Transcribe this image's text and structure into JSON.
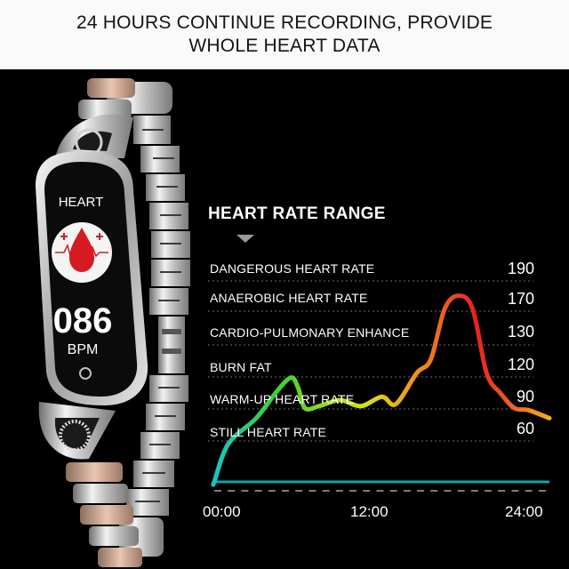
{
  "banner": {
    "line1": "24 HOURS CONTINUE RECORDING, PROVIDE",
    "line2": "WHOLE HEART DATA"
  },
  "watch": {
    "screen_title": "HEART",
    "reading": "086",
    "unit": "BPM",
    "icon": "heart-rate-drop-icon"
  },
  "chart": {
    "title": "HEART RATE RANGE",
    "zones": [
      {
        "label": "DANGEROUS HEART RATE",
        "value": "190"
      },
      {
        "label": "ANAEROBIC HEART RATE",
        "value": "170"
      },
      {
        "label": "CARDIO-PULMONARY ENHANCE",
        "value": "130"
      },
      {
        "label": "BURN FAT",
        "value": "120"
      },
      {
        "label": "WARM-UP HEART RATE",
        "value": "90"
      },
      {
        "label": "STILL HEART RATE",
        "value": "60"
      }
    ],
    "x_labels": [
      "00:00",
      "12:00",
      "24:00"
    ],
    "colors": {
      "start": "#19c3c3",
      "green": "#3fd12d",
      "yellow": "#d9e21c",
      "orange": "#f28a1e",
      "red": "#e4201e",
      "end": "#f5b01c",
      "baseline": "#12a4a8"
    }
  },
  "chart_data": {
    "type": "line",
    "title": "HEART RATE RANGE",
    "xlabel": "",
    "ylabel": "",
    "x_ticks": [
      "00:00",
      "12:00",
      "24:00"
    ],
    "y_ticks": [
      60,
      90,
      120,
      130,
      170,
      190
    ],
    "grid": true,
    "series": [
      {
        "x": [
          0,
          1,
          3,
          4.5,
          5.5,
          6,
          6.5,
          7.5,
          9,
          10.5,
          12,
          13,
          14.5,
          15.5,
          16.5,
          17.5,
          18.5,
          19.5,
          20.5,
          21.5,
          22.5,
          24
        ],
        "values": [
          30,
          52,
          72,
          98,
          110,
          101,
          82,
          84,
          90,
          84,
          93,
          86,
          114,
          122,
          158,
          172,
          158,
          114,
          96,
          82,
          80,
          72
        ]
      }
    ]
  }
}
